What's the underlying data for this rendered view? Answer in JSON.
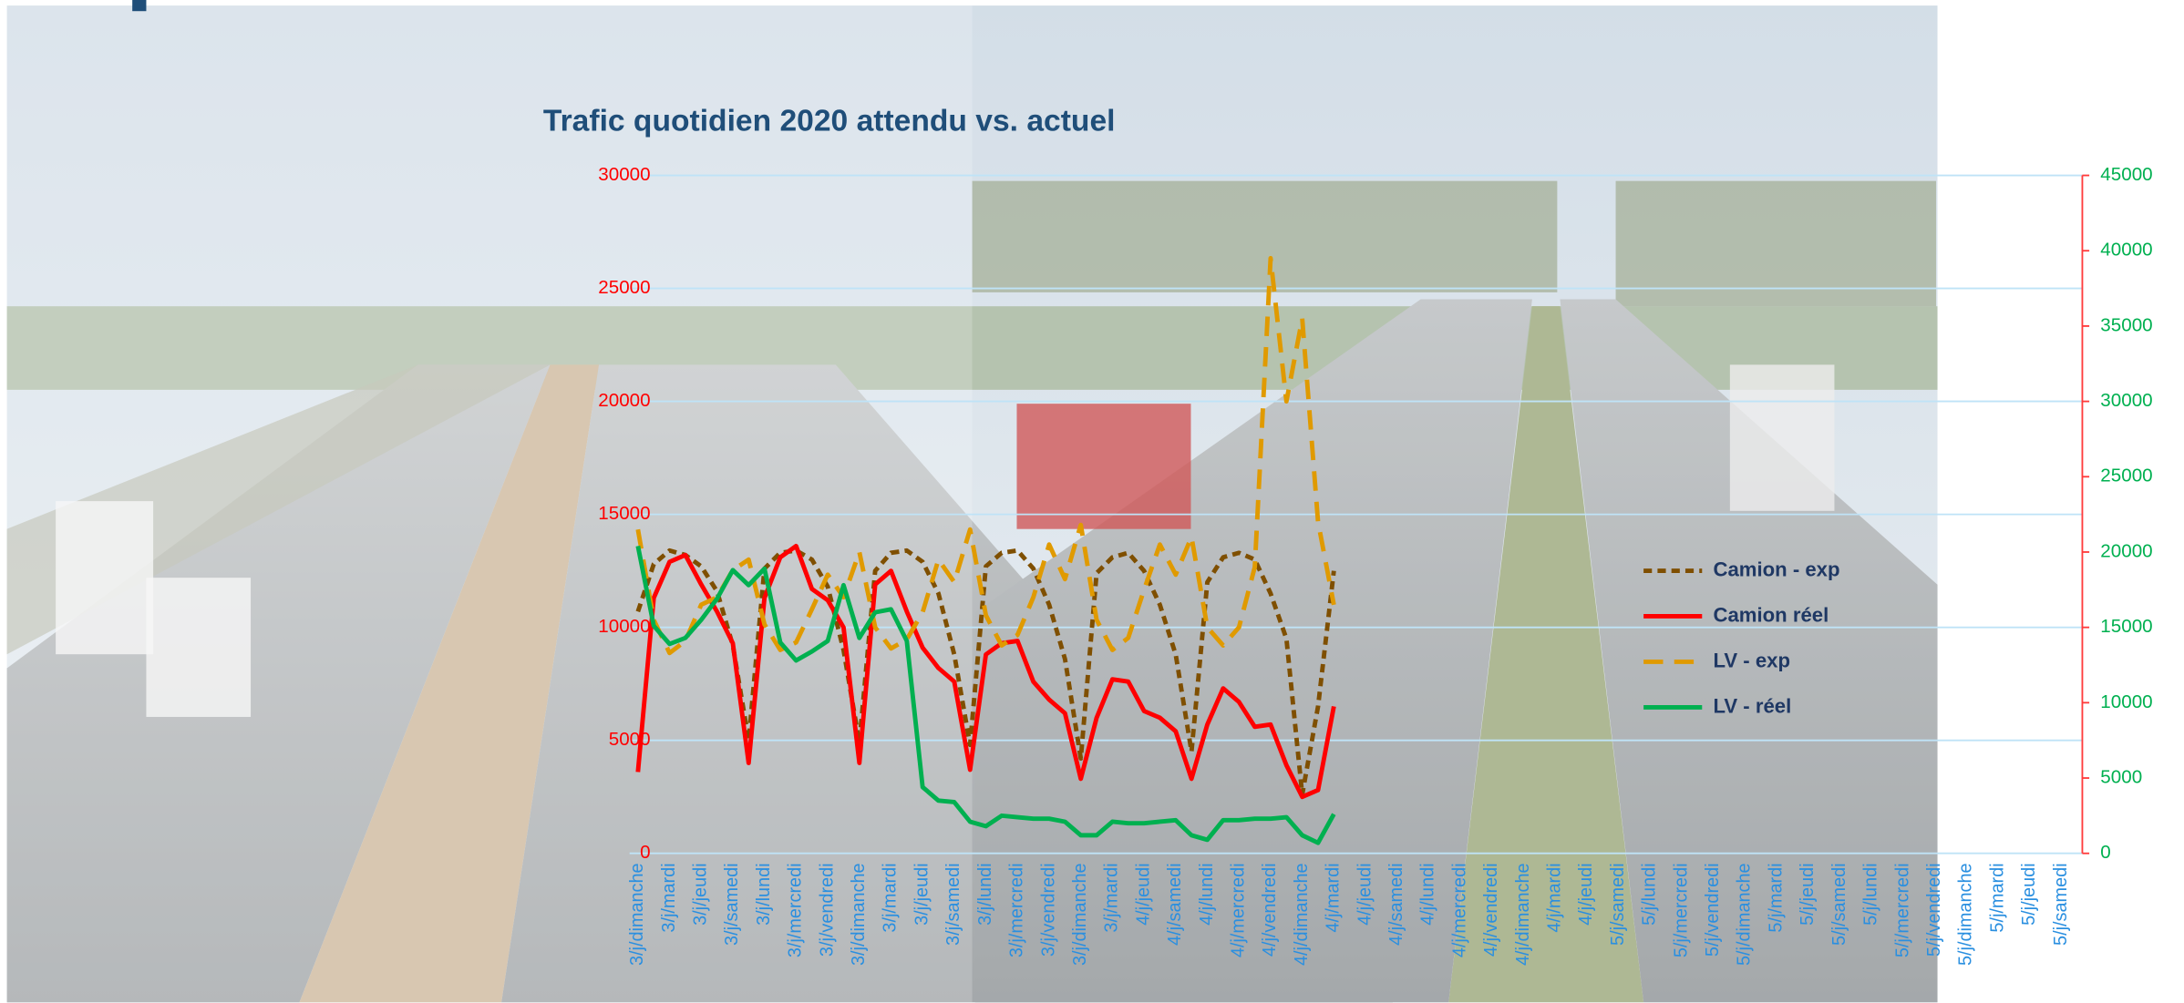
{
  "chart_data": {
    "type": "line",
    "title": "Trafic quotidien 2020 attendu vs. actuel",
    "categories": [
      "3/j/dimanche",
      null,
      "3/j/mardi",
      null,
      "3/j/jeudi",
      null,
      "3/j/samedi",
      null,
      "3/j/lundi",
      null,
      "3/j/mercredi",
      null,
      "3/j/vendredi",
      null,
      "3/j/dimanche",
      null,
      "3/j/mardi",
      null,
      "3/j/jeudi",
      null,
      "3/j/samedi",
      null,
      "3/j/lundi",
      null,
      "3/j/mercredi",
      null,
      "3/j/vendredi",
      null,
      "3/j/dimanche",
      null,
      "3/j/mardi",
      null,
      "4/j/jeudi",
      null,
      "4/j/samedi",
      null,
      "4/j/lundi",
      null,
      "4/j/mercredi",
      null,
      "4/j/vendredi",
      null,
      "4/j/dimanche",
      null,
      "4/j/mardi",
      null,
      "4/j/jeudi",
      null,
      "4/j/samedi",
      null,
      "4/j/lundi",
      null,
      "4/j/mercredi",
      null,
      "4/j/vendredi",
      null,
      "4/j/dimanche",
      null,
      "4/j/mardi",
      null,
      "4/j/jeudi",
      null,
      "5/j/samedi",
      null,
      "5/j/lundi",
      null,
      "5/j/mercredi",
      null,
      "5/j/vendredi",
      null,
      "5/j/dimanche",
      null,
      "5/j/mardi",
      null,
      "5/j/jeudi",
      null,
      "5/j/samedi",
      null,
      "5/j/lundi",
      null,
      "5/j/mercredi",
      null,
      "5/j/vendredi",
      null,
      "5/j/dimanche",
      null,
      "5/j/mardi",
      null,
      "5/j/jeudi",
      null,
      "5/j/samedi"
    ],
    "series": [
      {
        "name": "Camion - exp",
        "color": "#7f4f00",
        "dash": "short",
        "axis": "y",
        "values": [
          10700,
          12800,
          13400,
          13200,
          12700,
          11600,
          9200,
          5000,
          12600,
          13300,
          13400,
          13000,
          11800,
          9000,
          4900,
          12500,
          13300,
          13400,
          12900,
          11500,
          8800,
          4800,
          12700,
          13300,
          13400,
          12600,
          11000,
          8600,
          4200,
          12400,
          13100,
          13300,
          12500,
          11000,
          8800,
          4500,
          12000,
          13100,
          13300,
          13000,
          11500,
          9500,
          2600,
          6500,
          12500,
          null,
          null,
          null,
          null,
          null,
          null,
          null,
          null,
          null,
          null,
          null,
          null,
          null,
          null,
          null,
          null,
          null,
          null,
          null,
          null,
          null,
          null,
          null,
          null,
          null,
          null,
          null,
          null,
          null,
          null,
          null,
          null,
          null,
          null,
          null,
          null,
          null,
          null,
          null,
          null,
          null,
          null,
          null,
          null,
          null,
          null
        ]
      },
      {
        "name": "Camion réel",
        "color": "#ff0000",
        "dash": "none",
        "axis": "y",
        "values": [
          3600,
          11300,
          12900,
          13200,
          11900,
          10700,
          9300,
          4000,
          11300,
          13100,
          13600,
          11700,
          11200,
          10000,
          4000,
          11900,
          12500,
          10700,
          9100,
          8200,
          7600,
          3700,
          8800,
          9300,
          9400,
          7600,
          6800,
          6200,
          3300,
          6000,
          7700,
          7600,
          6300,
          6000,
          5400,
          3300,
          5700,
          7300,
          6700,
          5600,
          5700,
          3900,
          2500,
          2800,
          6500,
          null,
          null,
          null,
          null,
          null,
          null,
          null,
          null,
          null,
          null,
          null,
          null,
          null,
          null,
          null,
          null,
          null,
          null,
          null,
          null,
          null,
          null,
          null,
          null,
          null,
          null,
          null,
          null,
          null,
          null,
          null,
          null,
          null,
          null,
          null,
          null,
          null,
          null,
          null,
          null,
          null,
          null,
          null,
          null,
          null,
          null
        ]
      },
      {
        "name": "LV - exp",
        "color": "#e09a00",
        "dash": "long",
        "axis": "y2",
        "values": [
          21500,
          15500,
          13300,
          14100,
          16500,
          17000,
          18800,
          19500,
          15200,
          13500,
          14000,
          16200,
          18500,
          17000,
          20000,
          15000,
          13600,
          14200,
          16000,
          19500,
          18000,
          21500,
          15800,
          13800,
          14500,
          17000,
          20500,
          18200,
          21800,
          15500,
          13500,
          14300,
          17500,
          20500,
          18500,
          21000,
          15000,
          13800,
          15000,
          19000,
          39500,
          30000,
          35500,
          22000,
          16500,
          null,
          null,
          null,
          null,
          null,
          null,
          null,
          null,
          null,
          null,
          null,
          null,
          null,
          null,
          null,
          null,
          null,
          null,
          null,
          null,
          null,
          null,
          null,
          null,
          null,
          null,
          null,
          null,
          null,
          null,
          null,
          null,
          null,
          null,
          null,
          null,
          null,
          null,
          null,
          null,
          null,
          null,
          null,
          null,
          null,
          null
        ]
      },
      {
        "name": "LV - réel",
        "color": "#00b050",
        "dash": "none",
        "axis": "y2",
        "values": [
          20400,
          15100,
          13900,
          14300,
          15500,
          16900,
          18800,
          17800,
          18900,
          14000,
          12800,
          13400,
          14100,
          17800,
          14300,
          16000,
          16200,
          14100,
          4400,
          3500,
          3400,
          2100,
          1800,
          2500,
          2400,
          2300,
          2300,
          2100,
          1200,
          1200,
          2100,
          2000,
          2000,
          2100,
          2200,
          1200,
          900,
          2200,
          2200,
          2300,
          2300,
          2400,
          1200,
          700,
          2600,
          null,
          null,
          null,
          null,
          null,
          null,
          null,
          null,
          null,
          null,
          null,
          null,
          null,
          null,
          null,
          null,
          null,
          null,
          null,
          null,
          null,
          null,
          null,
          null,
          null,
          null,
          null,
          null,
          null,
          null,
          null,
          null,
          null,
          null,
          null,
          null,
          null,
          null,
          null,
          null,
          null,
          null,
          null,
          null,
          null,
          null
        ]
      }
    ],
    "ylim": [
      0,
      30000
    ],
    "yticks": [
      0,
      5000,
      10000,
      15000,
      20000,
      25000,
      30000
    ],
    "y2lim": [
      0,
      45000
    ],
    "y2ticks": [
      0,
      5000,
      10000,
      15000,
      20000,
      25000,
      30000,
      35000,
      40000,
      45000
    ],
    "grid": true,
    "legend": "right"
  }
}
